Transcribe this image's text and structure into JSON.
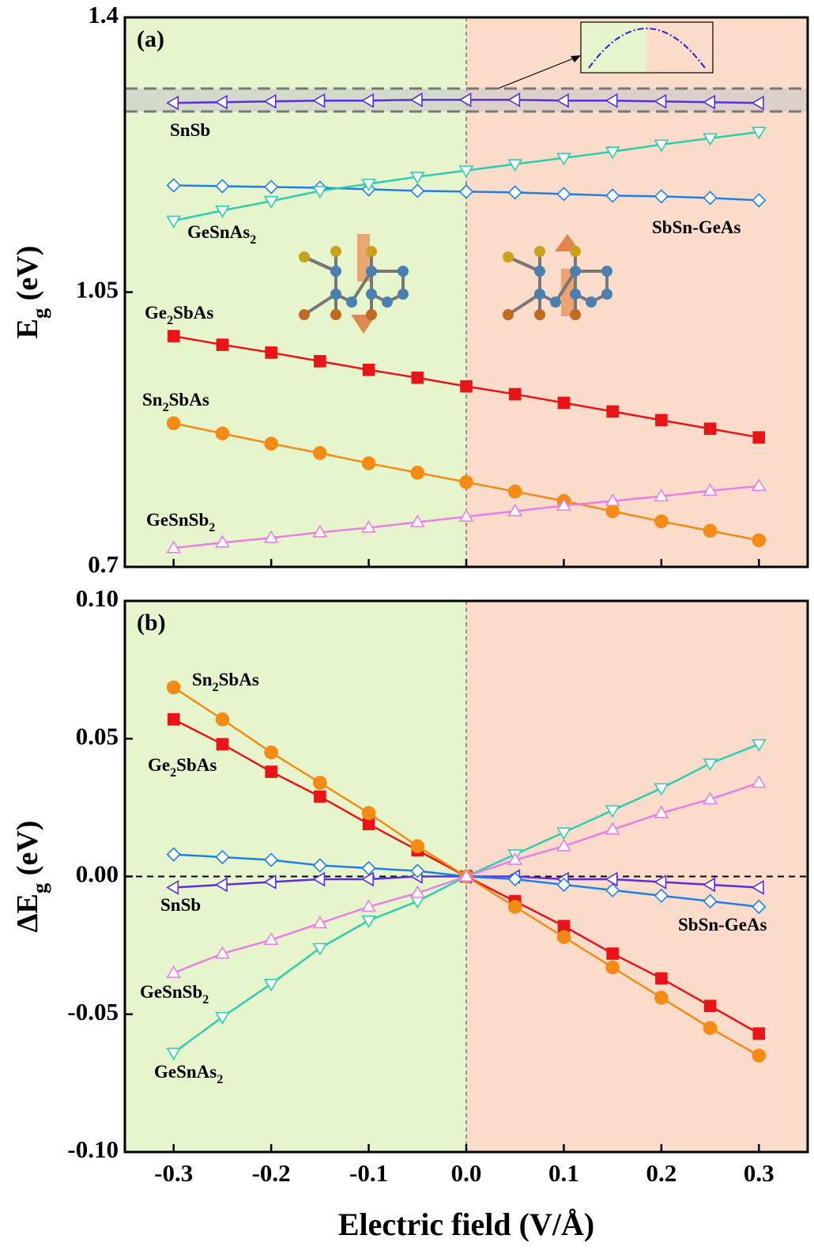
{
  "chart_data": [
    {
      "type": "line",
      "panel_label": "(a)",
      "ylabel": "Eg (eV)",
      "x": [
        -0.3,
        -0.25,
        -0.2,
        -0.15,
        -0.1,
        -0.05,
        0,
        0.05,
        0.1,
        0.15,
        0.2,
        0.25,
        0.3
      ],
      "xlim": [
        -0.35,
        0.35
      ],
      "ylim": [
        0.7,
        1.4
      ],
      "yticks": [
        0.7,
        1.05,
        1.4
      ],
      "series": [
        {
          "name": "SnSb",
          "color": "#5a2ee0",
          "marker": "triangle-left",
          "filled": false,
          "values": [
            1.291,
            1.292,
            1.293,
            1.294,
            1.294,
            1.295,
            1.295,
            1.295,
            1.294,
            1.294,
            1.293,
            1.292,
            1.291
          ]
        },
        {
          "name": "SbSn-GeAs",
          "color": "#1e80e6",
          "marker": "diamond",
          "filled": false,
          "values": [
            1.186,
            1.185,
            1.184,
            1.183,
            1.181,
            1.179,
            1.178,
            1.177,
            1.175,
            1.173,
            1.172,
            1.17,
            1.167
          ]
        },
        {
          "name": "GeSnAs2",
          "color": "#2ecdb0",
          "marker": "triangle-down",
          "filled": false,
          "values": [
            1.141,
            1.154,
            1.166,
            1.179,
            1.188,
            1.197,
            1.205,
            1.213,
            1.221,
            1.229,
            1.238,
            1.246,
            1.254
          ]
        },
        {
          "name": "Ge2SbAs",
          "color": "#e81418",
          "marker": "square",
          "filled": true,
          "values": [
            0.994,
            0.983,
            0.973,
            0.962,
            0.951,
            0.941,
            0.93,
            0.92,
            0.909,
            0.898,
            0.887,
            0.876,
            0.865
          ]
        },
        {
          "name": "Sn2SbAs",
          "color": "#f58a14",
          "marker": "circle",
          "filled": true,
          "values": [
            0.883,
            0.87,
            0.857,
            0.845,
            0.832,
            0.82,
            0.808,
            0.796,
            0.784,
            0.771,
            0.758,
            0.746,
            0.734
          ]
        },
        {
          "name": "GeSnSb2",
          "color": "#e87fe6",
          "marker": "triangle-up",
          "filled": false,
          "values": [
            0.724,
            0.731,
            0.737,
            0.744,
            0.75,
            0.757,
            0.764,
            0.771,
            0.778,
            0.784,
            0.79,
            0.797,
            0.803
          ]
        }
      ]
    },
    {
      "type": "line",
      "panel_label": "(b)",
      "ylabel": "ΔEg (eV)",
      "xlabel": "Electric field (V/Å)",
      "x": [
        -0.3,
        -0.25,
        -0.2,
        -0.15,
        -0.1,
        -0.05,
        0,
        0.05,
        0.1,
        0.15,
        0.2,
        0.25,
        0.3
      ],
      "xlim": [
        -0.35,
        0.35
      ],
      "xticks": [
        -0.3,
        -0.2,
        -0.1,
        {
          "value": 0,
          "label": "0.0"
        },
        0.1,
        0.2,
        0.3
      ],
      "ylim": [
        -0.1,
        0.1
      ],
      "yticks": [
        {
          "value": -0.1,
          "label": "-0.10"
        },
        -0.05,
        {
          "value": 0,
          "label": "0.00"
        },
        0.05,
        {
          "value": 0.1,
          "label": "0.10"
        }
      ],
      "series": [
        {
          "name": "SnSb",
          "color": "#5a2ee0",
          "marker": "triangle-left",
          "filled": false,
          "values": [
            -0.004,
            -0.003,
            -0.002,
            -0.001,
            -0.001,
            0,
            0,
            0,
            -0.001,
            -0.001,
            -0.002,
            -0.003,
            -0.004
          ]
        },
        {
          "name": "SbSn-GeAs",
          "color": "#1e80e6",
          "marker": "diamond",
          "filled": false,
          "values": [
            0.008,
            0.007,
            0.006,
            0.004,
            0.003,
            0.002,
            0,
            -0.001,
            -0.003,
            -0.005,
            -0.007,
            -0.009,
            -0.011
          ]
        },
        {
          "name": "GeSnAs2",
          "color": "#2ecdb0",
          "marker": "triangle-down",
          "filled": false,
          "values": [
            -0.064,
            -0.051,
            -0.039,
            -0.026,
            -0.016,
            -0.009,
            0,
            0.008,
            0.016,
            0.024,
            0.032,
            0.041,
            0.048
          ]
        },
        {
          "name": "Ge2SbAs",
          "color": "#e81418",
          "marker": "square",
          "filled": true,
          "values": [
            0.057,
            0.048,
            0.038,
            0.029,
            0.019,
            0.0095,
            0,
            -0.009,
            -0.018,
            -0.028,
            -0.037,
            -0.047,
            -0.057
          ]
        },
        {
          "name": "Sn2SbAs",
          "color": "#f58a14",
          "marker": "circle",
          "filled": true,
          "values": [
            0.0686,
            0.057,
            0.045,
            0.034,
            0.023,
            0.011,
            0,
            -0.011,
            -0.022,
            -0.033,
            -0.044,
            -0.055,
            -0.065
          ]
        },
        {
          "name": "GeSnSb2",
          "color": "#e87fe6",
          "marker": "triangle-up",
          "filled": false,
          "values": [
            -0.035,
            -0.028,
            -0.023,
            -0.017,
            -0.011,
            -0.006,
            0,
            0.006,
            0.011,
            0.017,
            0.023,
            0.028,
            0.034
          ]
        }
      ]
    }
  ]
}
